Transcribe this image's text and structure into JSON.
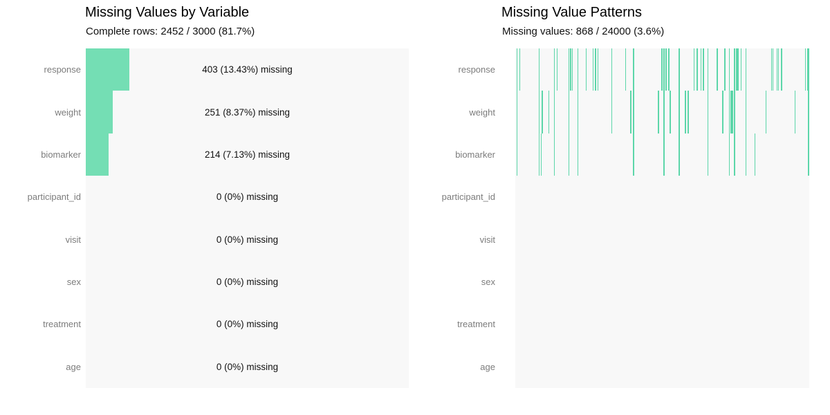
{
  "left_panel": {
    "title": "Missing Values by Variable",
    "subtitle": "Complete rows: 2452 / 3000 (81.7%)"
  },
  "right_panel": {
    "title": "Missing Value Patterns",
    "subtitle": "Missing values: 868 / 24000 (3.6%)"
  },
  "colors": {
    "bar_green": "#74DEB4",
    "line_green": "#5CD6A9",
    "plot_background": "#f8f8f8",
    "label_gray": "#7c7c7c",
    "text_black": "#111111"
  },
  "chart_data": [
    {
      "type": "bar",
      "orientation": "horizontal",
      "title": "Missing Values by Variable",
      "subtitle": "Complete rows: 2452 / 3000 (81.7%)",
      "categories": [
        "response",
        "weight",
        "biomarker",
        "participant_id",
        "visit",
        "sex",
        "treatment",
        "age"
      ],
      "missing_counts": [
        403,
        251,
        214,
        0,
        0,
        0,
        0,
        0
      ],
      "missing_pct": [
        13.43,
        8.37,
        7.13,
        0,
        0,
        0,
        0,
        0
      ],
      "bar_labels": [
        "403 (13.43%) missing",
        "251 (8.37%) missing",
        "214 (7.13%) missing",
        "0 (0%) missing",
        "0 (0%) missing",
        "0 (0%) missing",
        "0 (0%) missing",
        "0 (0%) missing"
      ],
      "total_rows": 3000,
      "complete_rows": 2452,
      "xlim": [
        0,
        100
      ],
      "grid": false,
      "legend": "none"
    },
    {
      "type": "heatmap",
      "title": "Missing Value Patterns",
      "subtitle": "Missing values: 868 / 24000 (3.6%)",
      "categories": [
        "response",
        "weight",
        "biomarker",
        "participant_id",
        "visit",
        "sex",
        "treatment",
        "age"
      ],
      "total_cells": 24000,
      "missing_cells": 868,
      "x_axis": "record index (0-100% of 3000 records)",
      "missing_x_pct": {
        "response": [
          0.6,
          1.6,
          8.2,
          13.3,
          14.3,
          18.3,
          18.8,
          19.4,
          21.3,
          24.1,
          26.5,
          27.3,
          28.2,
          32.9,
          37.6,
          40.2,
          49.9,
          50.6,
          51.3,
          52.2,
          55.8,
          60.9,
          61.9,
          63.1,
          64.0,
          65.6,
          68.7,
          71.3,
          72.9,
          74.6,
          75.3,
          75.8,
          76.9,
          78.4,
          87.2,
          87.6,
          89.1,
          89.6,
          90.6,
          98.7,
          99.4,
          99.8
        ],
        "weight": [
          0.6,
          8.2,
          9.2,
          11.4,
          13.3,
          18.3,
          21.3,
          32.9,
          39.3,
          40.2,
          48.7,
          50.6,
          52.7,
          55.8,
          57.9,
          58.8,
          65.6,
          70.6,
          72.9,
          73.4,
          73.9,
          74.6,
          78.4,
          85.3,
          95.1,
          99.8
        ],
        "biomarker": [
          0.6,
          8.2,
          8.9,
          13.3,
          18.3,
          21.3,
          40.2,
          50.6,
          55.8,
          65.6,
          72.9,
          74.6,
          78.4,
          81.6,
          99.8
        ],
        "participant_id": [],
        "visit": [],
        "sex": [],
        "treatment": [],
        "age": []
      },
      "grid": false,
      "legend": "none"
    }
  ]
}
